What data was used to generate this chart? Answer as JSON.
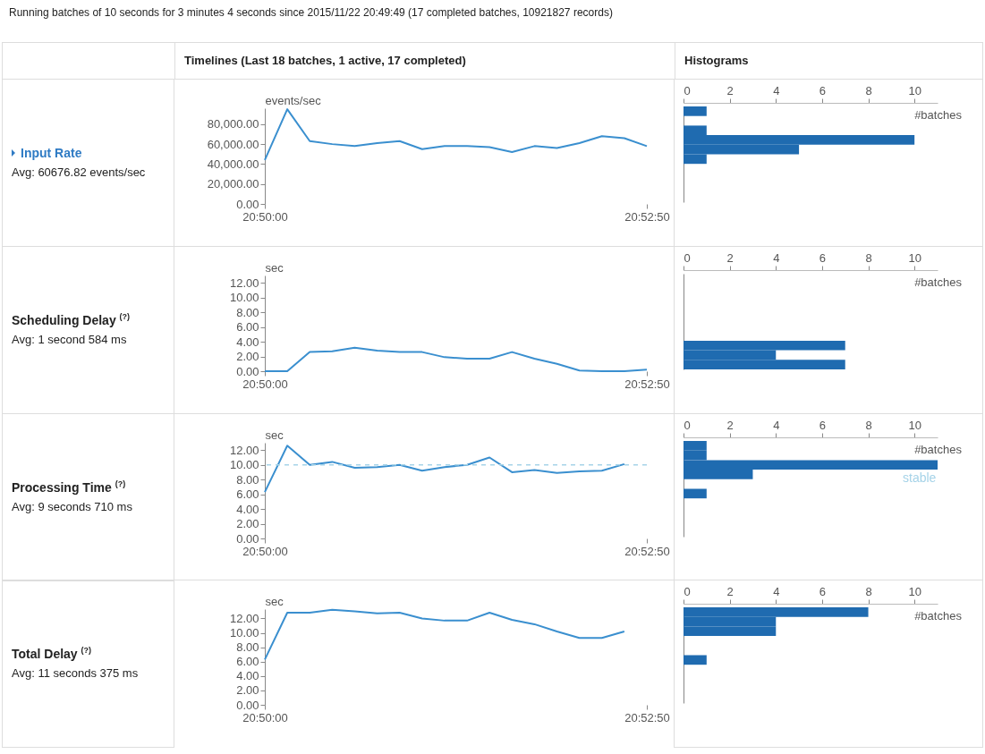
{
  "chart_data": [
    {
      "type": "other",
      "title": "Running batches of 10 seconds for 3 minutes 4 seconds since 2015/11/22 20:49:49 (17 completed batches, 10921827 records)",
      "annotations": [
        "Timelines (Last 18 batches, 1 active, 17 completed)",
        "Histograms"
      ]
    },
    {
      "type": "other",
      "title": "Input Rate",
      "subtitle": "Avg: 60676.82 events/sec"
    },
    {
      "type": "line",
      "ylabel": "events/sec",
      "color": "#3a8fcf",
      "categories": [
        "20:50:00",
        null,
        null,
        null,
        null,
        null,
        null,
        null,
        null,
        null,
        null,
        null,
        null,
        null,
        null,
        null,
        null,
        "20:52:50"
      ],
      "values": [
        44000,
        95000,
        63000,
        60000,
        58000,
        61000,
        63000,
        55000,
        58000,
        58000,
        57000,
        52000,
        58000,
        56000,
        61000,
        68000,
        66000,
        58000
      ],
      "ylim": [
        0,
        96000
      ],
      "yticks": [
        {
          "value": 0,
          "label": "0.00"
        },
        {
          "value": 20000,
          "label": "20,000.00"
        },
        {
          "value": 40000,
          "label": "40,000.00"
        },
        {
          "value": 60000,
          "label": "60,000.00"
        },
        {
          "value": 80000,
          "label": "80,000.00"
        }
      ]
    },
    {
      "type": "bar",
      "orientation": "horizontal",
      "color": "#1f6bb0",
      "xlabel": "#batches",
      "categories": [
        null,
        null,
        null,
        null,
        null,
        null,
        null,
        null,
        null,
        null
      ],
      "values": [
        1,
        0,
        1,
        10,
        5,
        1,
        null,
        null,
        null,
        null
      ],
      "xlim": [
        0,
        11
      ],
      "xticks": [
        0,
        2,
        4,
        6,
        8,
        10
      ],
      "tick_labels": "x"
    },
    {
      "type": "other",
      "title": "Scheduling Delay $^{(?)}$",
      "subtitle": "Avg: 1 second 584 ms"
    },
    {
      "type": "line",
      "ylabel": "sec",
      "color": "#3a8fcf",
      "categories": [
        "20:50:00",
        null,
        null,
        null,
        null,
        null,
        null,
        null,
        null,
        null,
        null,
        null,
        null,
        null,
        null,
        null,
        null,
        "20:52:50"
      ],
      "values": [
        0,
        0,
        2.6,
        2.7,
        3.2,
        2.8,
        2.6,
        2.6,
        1.9,
        1.7,
        1.7,
        2.6,
        1.7,
        1.0,
        0.1,
        0,
        0,
        0.2
      ],
      "ylim": [
        0,
        13
      ],
      "yticks": [
        {
          "value": 0,
          "label": "0.00"
        },
        {
          "value": 2,
          "label": "2.00"
        },
        {
          "value": 4,
          "label": "4.00"
        },
        {
          "value": 6,
          "label": "6.00"
        },
        {
          "value": 8,
          "label": "8.00"
        },
        {
          "value": 10,
          "label": "10.00"
        },
        {
          "value": 12,
          "label": "12.00"
        }
      ]
    },
    {
      "type": "bar",
      "orientation": "horizontal",
      "color": "#1f6bb0",
      "xlabel": "#batches",
      "categories": [
        null,
        null,
        null,
        null,
        null,
        null,
        null,
        null,
        null,
        null
      ],
      "values": [
        null,
        null,
        null,
        null,
        null,
        null,
        null,
        7,
        4,
        7
      ],
      "xlim": [
        0,
        11
      ],
      "xticks": [
        0,
        2,
        4,
        6,
        8,
        10
      ],
      "tick_labels": "x"
    },
    {
      "type": "other",
      "title": "Processing Time $^{(?)}$",
      "subtitle": "Avg: 9 seconds 710 ms"
    },
    {
      "type": "line",
      "ylabel": "sec",
      "color": "#3a8fcf",
      "categories": [
        "20:50:00",
        null,
        null,
        null,
        null,
        null,
        null,
        null,
        null,
        null,
        null,
        null,
        null,
        null,
        null,
        null,
        null,
        "20:52:50"
      ],
      "values": [
        6.3,
        12.6,
        10.0,
        10.4,
        9.6,
        9.7,
        10.0,
        9.2,
        9.7,
        10.0,
        11.0,
        9.0,
        9.3,
        8.9,
        9.1,
        9.2,
        10.1,
        null
      ],
      "ylim": [
        0,
        13
      ],
      "yticks": [
        {
          "value": 0,
          "label": "0.00"
        },
        {
          "value": 2,
          "label": "2.00"
        },
        {
          "value": 4,
          "label": "4.00"
        },
        {
          "value": 6,
          "label": "6.00"
        },
        {
          "value": 8,
          "label": "8.00"
        },
        {
          "value": 10,
          "label": "10.00"
        },
        {
          "value": 12,
          "label": "12.00"
        }
      ],
      "ref_lines": [
        {
          "axis": "y",
          "value": 10,
          "color": "#a6d3e8",
          "line_style": "dashed"
        }
      ]
    },
    {
      "type": "bar",
      "orientation": "horizontal",
      "color": "#1f6bb0",
      "xlabel": "#batches",
      "categories": [
        null,
        null,
        null,
        null,
        null,
        null,
        null,
        null,
        null,
        null
      ],
      "values": [
        1,
        1,
        11,
        3,
        0,
        1,
        null,
        null,
        null,
        null
      ],
      "xlim": [
        0,
        11
      ],
      "xticks": [
        0,
        2,
        4,
        6,
        8,
        10
      ],
      "tick_labels": "x",
      "annotations": [
        "stable"
      ]
    },
    {
      "type": "other",
      "title": "Total Delay $^{(?)}$",
      "subtitle": "Avg: 11 seconds 375 ms"
    },
    {
      "type": "line",
      "ylabel": "sec",
      "color": "#3a8fcf",
      "categories": [
        "20:50:00",
        null,
        null,
        null,
        null,
        null,
        null,
        null,
        null,
        null,
        null,
        null,
        null,
        null,
        null,
        null,
        null,
        "20:52:50"
      ],
      "values": [
        6.3,
        12.8,
        12.8,
        13.2,
        13.0,
        12.7,
        12.8,
        12.0,
        11.7,
        11.7,
        12.8,
        11.8,
        11.2,
        10.2,
        9.3,
        9.3,
        10.2,
        null
      ],
      "ylim": [
        0,
        13.3
      ],
      "yticks": [
        {
          "value": 0,
          "label": "0.00"
        },
        {
          "value": 2,
          "label": "2.00"
        },
        {
          "value": 4,
          "label": "4.00"
        },
        {
          "value": 6,
          "label": "6.00"
        },
        {
          "value": 8,
          "label": "8.00"
        },
        {
          "value": 10,
          "label": "10.00"
        },
        {
          "value": 12,
          "label": "12.00"
        }
      ]
    },
    {
      "type": "bar",
      "orientation": "horizontal",
      "color": "#1f6bb0",
      "xlabel": "#batches",
      "categories": [
        null,
        null,
        null,
        null,
        null,
        null,
        null,
        null,
        null,
        null
      ],
      "values": [
        8,
        4,
        4,
        0,
        0,
        1,
        null,
        null,
        null,
        null
      ],
      "xlim": [
        0,
        11
      ],
      "xticks": [
        0,
        2,
        4,
        6,
        8,
        10
      ],
      "tick_labels": "x"
    }
  ]
}
